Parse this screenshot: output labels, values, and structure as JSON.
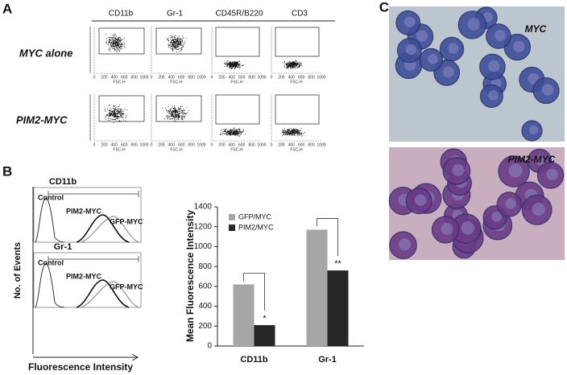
{
  "panel_a": {
    "letter": "A",
    "columns": [
      "CD11b",
      "Gr-1",
      "CD45R/B220",
      "CD3"
    ],
    "rows": [
      "MYC alone",
      "PIM2-MYC"
    ],
    "x_tick_labels": [
      "0",
      "200",
      "400",
      "600",
      "800",
      "1000"
    ],
    "x_label": "FSC-H"
  },
  "panel_b": {
    "letter": "B",
    "histograms": [
      {
        "title": "CD11b",
        "control": "Control",
        "pim2": "PIM2-MYC",
        "gfp": "GFP-MYC"
      },
      {
        "title": "Gr-1",
        "control": "Control",
        "pim2": "PIM2-MYC",
        "gfp": "GFP-MYC"
      }
    ],
    "y_label": "No. of Events",
    "x_label": "Fluorescence  Intensity"
  },
  "chart_data": {
    "type": "bar",
    "y_label": "Mean  Fluorescence  Intensity",
    "categories": [
      "CD11b",
      "Gr-1"
    ],
    "series": [
      {
        "name": "GFP/MYC",
        "color": "#a6a6a6",
        "values": [
          620,
          1170
        ]
      },
      {
        "name": "PIM2/MYC",
        "color": "#262626",
        "values": [
          210,
          760
        ]
      }
    ],
    "annotations": [
      "*",
      "**"
    ],
    "ylim": [
      0,
      1400
    ],
    "yticks": [
      0,
      200,
      400,
      600,
      800,
      1000,
      1200,
      1400
    ],
    "legend": "upper left"
  },
  "panel_c": {
    "letter": "C",
    "images": [
      "MYC",
      "PIM2-MYC"
    ]
  }
}
